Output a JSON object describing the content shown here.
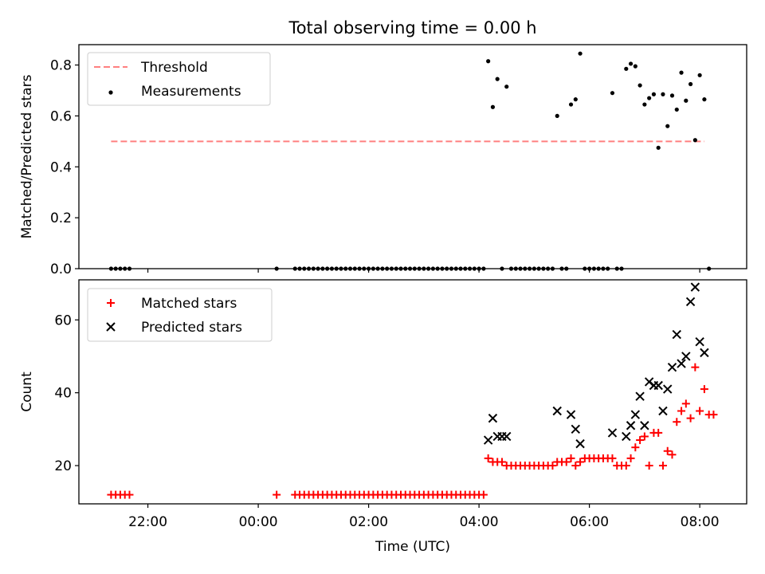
{
  "figure": {
    "title": "Total observing time = 0.00 h",
    "xlabel": "Time (UTC)",
    "x_tick_labels": [
      "22:00",
      "00:00",
      "02:00",
      "04:00",
      "06:00",
      "08:00"
    ]
  },
  "chart_data": [
    {
      "type": "scatter",
      "xlabel": "",
      "ylabel": "Matched/Predicted stars",
      "ylim": [
        0,
        0.88
      ],
      "yticks": [
        0.0,
        0.2,
        0.4,
        0.6,
        0.8
      ],
      "ytick_labels": [
        "0.0",
        "0.2",
        "0.4",
        "0.6",
        "0.8"
      ],
      "legend": {
        "placement": "top-left",
        "entries": [
          "Threshold",
          "Measurements"
        ]
      },
      "threshold": {
        "name": "Threshold",
        "y": 0.5,
        "x_range": [
          "21:20",
          "08:05"
        ],
        "color": "#ff8080",
        "style": "dashed"
      },
      "series": [
        {
          "name": "Measurements",
          "marker": "dot",
          "color": "#000000",
          "points": [
            [
              "21:20",
              0
            ],
            [
              "21:25",
              0
            ],
            [
              "21:30",
              0
            ],
            [
              "21:35",
              0
            ],
            [
              "21:40",
              0
            ],
            [
              "00:20",
              0
            ],
            [
              "00:40",
              0
            ],
            [
              "00:45",
              0
            ],
            [
              "00:50",
              0
            ],
            [
              "00:55",
              0
            ],
            [
              "01:00",
              0
            ],
            [
              "01:05",
              0
            ],
            [
              "01:10",
              0
            ],
            [
              "01:15",
              0
            ],
            [
              "01:20",
              0
            ],
            [
              "01:25",
              0
            ],
            [
              "01:30",
              0
            ],
            [
              "01:35",
              0
            ],
            [
              "01:40",
              0
            ],
            [
              "01:45",
              0
            ],
            [
              "01:50",
              0
            ],
            [
              "01:55",
              0
            ],
            [
              "02:00",
              0
            ],
            [
              "02:05",
              0
            ],
            [
              "02:10",
              0
            ],
            [
              "02:15",
              0
            ],
            [
              "02:20",
              0
            ],
            [
              "02:25",
              0
            ],
            [
              "02:30",
              0
            ],
            [
              "02:35",
              0
            ],
            [
              "02:40",
              0
            ],
            [
              "02:45",
              0
            ],
            [
              "02:50",
              0
            ],
            [
              "02:55",
              0
            ],
            [
              "03:00",
              0
            ],
            [
              "03:05",
              0
            ],
            [
              "03:10",
              0
            ],
            [
              "03:15",
              0
            ],
            [
              "03:20",
              0
            ],
            [
              "03:25",
              0
            ],
            [
              "03:30",
              0
            ],
            [
              "03:35",
              0
            ],
            [
              "03:40",
              0
            ],
            [
              "03:45",
              0
            ],
            [
              "03:50",
              0
            ],
            [
              "03:55",
              0
            ],
            [
              "04:00",
              0
            ],
            [
              "04:05",
              0
            ],
            [
              "04:10",
              0.815
            ],
            [
              "04:15",
              0.635
            ],
            [
              "04:20",
              0.745
            ],
            [
              "04:25",
              0
            ],
            [
              "04:30",
              0.715
            ],
            [
              "04:35",
              0
            ],
            [
              "04:40",
              0
            ],
            [
              "04:45",
              0
            ],
            [
              "04:50",
              0
            ],
            [
              "04:55",
              0
            ],
            [
              "05:00",
              0
            ],
            [
              "05:05",
              0
            ],
            [
              "05:10",
              0
            ],
            [
              "05:15",
              0
            ],
            [
              "05:20",
              0
            ],
            [
              "05:25",
              0.6
            ],
            [
              "05:30",
              0
            ],
            [
              "05:35",
              0
            ],
            [
              "05:40",
              0.645
            ],
            [
              "05:45",
              0.665
            ],
            [
              "05:50",
              0.845
            ],
            [
              "05:55",
              0
            ],
            [
              "06:00",
              0
            ],
            [
              "06:05",
              0
            ],
            [
              "06:10",
              0
            ],
            [
              "06:15",
              0
            ],
            [
              "06:20",
              0
            ],
            [
              "06:25",
              0.69
            ],
            [
              "06:30",
              0
            ],
            [
              "06:35",
              0
            ],
            [
              "06:40",
              0.785
            ],
            [
              "06:45",
              0.805
            ],
            [
              "06:50",
              0.795
            ],
            [
              "06:55",
              0.72
            ],
            [
              "07:00",
              0.645
            ],
            [
              "07:05",
              0.67
            ],
            [
              "07:10",
              0.685
            ],
            [
              "07:15",
              0.475
            ],
            [
              "07:20",
              0.685
            ],
            [
              "07:25",
              0.56
            ],
            [
              "07:30",
              0.68
            ],
            [
              "07:35",
              0.625
            ],
            [
              "07:40",
              0.77
            ],
            [
              "07:45",
              0.66
            ],
            [
              "07:50",
              0.725
            ],
            [
              "07:55",
              0.505
            ],
            [
              "08:00",
              0.76
            ],
            [
              "08:05",
              0.665
            ],
            [
              "08:10",
              0
            ]
          ]
        }
      ]
    },
    {
      "type": "scatter",
      "xlabel": "Time (UTC)",
      "ylabel": "Count",
      "ylim": [
        9.5,
        71
      ],
      "yticks": [
        20,
        40,
        60
      ],
      "ytick_labels": [
        "20",
        "40",
        "60"
      ],
      "legend": {
        "placement": "top-left",
        "entries": [
          "Matched stars",
          "Predicted stars"
        ]
      },
      "series": [
        {
          "name": "Matched stars",
          "marker": "plus",
          "color": "#ff0000",
          "points": [
            [
              "21:20",
              12
            ],
            [
              "21:25",
              12
            ],
            [
              "21:30",
              12
            ],
            [
              "21:35",
              12
            ],
            [
              "21:40",
              12
            ],
            [
              "00:20",
              12
            ],
            [
              "00:40",
              12
            ],
            [
              "00:45",
              12
            ],
            [
              "00:50",
              12
            ],
            [
              "00:55",
              12
            ],
            [
              "01:00",
              12
            ],
            [
              "01:05",
              12
            ],
            [
              "01:10",
              12
            ],
            [
              "01:15",
              12
            ],
            [
              "01:20",
              12
            ],
            [
              "01:25",
              12
            ],
            [
              "01:30",
              12
            ],
            [
              "01:35",
              12
            ],
            [
              "01:40",
              12
            ],
            [
              "01:45",
              12
            ],
            [
              "01:50",
              12
            ],
            [
              "01:55",
              12
            ],
            [
              "02:00",
              12
            ],
            [
              "02:05",
              12
            ],
            [
              "02:10",
              12
            ],
            [
              "02:15",
              12
            ],
            [
              "02:20",
              12
            ],
            [
              "02:25",
              12
            ],
            [
              "02:30",
              12
            ],
            [
              "02:35",
              12
            ],
            [
              "02:40",
              12
            ],
            [
              "02:45",
              12
            ],
            [
              "02:50",
              12
            ],
            [
              "02:55",
              12
            ],
            [
              "03:00",
              12
            ],
            [
              "03:05",
              12
            ],
            [
              "03:10",
              12
            ],
            [
              "03:15",
              12
            ],
            [
              "03:20",
              12
            ],
            [
              "03:25",
              12
            ],
            [
              "03:30",
              12
            ],
            [
              "03:35",
              12
            ],
            [
              "03:40",
              12
            ],
            [
              "03:45",
              12
            ],
            [
              "03:50",
              12
            ],
            [
              "03:55",
              12
            ],
            [
              "04:00",
              12
            ],
            [
              "04:05",
              12
            ],
            [
              "04:10",
              22
            ],
            [
              "04:15",
              21
            ],
            [
              "04:20",
              21
            ],
            [
              "04:25",
              21
            ],
            [
              "04:30",
              20
            ],
            [
              "04:35",
              20
            ],
            [
              "04:40",
              20
            ],
            [
              "04:45",
              20
            ],
            [
              "04:50",
              20
            ],
            [
              "04:55",
              20
            ],
            [
              "05:00",
              20
            ],
            [
              "05:05",
              20
            ],
            [
              "05:10",
              20
            ],
            [
              "05:15",
              20
            ],
            [
              "05:20",
              20
            ],
            [
              "05:25",
              21
            ],
            [
              "05:30",
              21
            ],
            [
              "05:35",
              21
            ],
            [
              "05:40",
              22
            ],
            [
              "05:45",
              20
            ],
            [
              "05:50",
              21
            ],
            [
              "05:55",
              22
            ],
            [
              "06:00",
              22
            ],
            [
              "06:05",
              22
            ],
            [
              "06:10",
              22
            ],
            [
              "06:15",
              22
            ],
            [
              "06:20",
              22
            ],
            [
              "06:25",
              22
            ],
            [
              "06:30",
              20
            ],
            [
              "06:35",
              20
            ],
            [
              "06:40",
              20
            ],
            [
              "06:45",
              22
            ],
            [
              "06:50",
              25
            ],
            [
              "06:55",
              27
            ],
            [
              "07:00",
              28
            ],
            [
              "07:05",
              20
            ],
            [
              "07:10",
              29
            ],
            [
              "07:15",
              29
            ],
            [
              "07:20",
              20
            ],
            [
              "07:25",
              24
            ],
            [
              "07:30",
              23
            ],
            [
              "07:35",
              32
            ],
            [
              "07:40",
              35
            ],
            [
              "07:45",
              37
            ],
            [
              "07:50",
              33
            ],
            [
              "07:55",
              47
            ],
            [
              "08:00",
              35
            ],
            [
              "08:05",
              41
            ],
            [
              "08:10",
              34
            ],
            [
              "08:15",
              34
            ]
          ]
        },
        {
          "name": "Predicted stars",
          "marker": "x",
          "color": "#000000",
          "points": [
            [
              "04:10",
              27
            ],
            [
              "04:15",
              33
            ],
            [
              "04:20",
              28
            ],
            [
              "04:25",
              28
            ],
            [
              "04:30",
              28
            ],
            [
              "05:25",
              35
            ],
            [
              "05:40",
              34
            ],
            [
              "05:45",
              30
            ],
            [
              "05:50",
              26
            ],
            [
              "06:25",
              29
            ],
            [
              "06:40",
              28
            ],
            [
              "06:45",
              31
            ],
            [
              "06:50",
              34
            ],
            [
              "06:55",
              39
            ],
            [
              "07:00",
              31
            ],
            [
              "07:05",
              43
            ],
            [
              "07:10",
              42
            ],
            [
              "07:15",
              42
            ],
            [
              "07:20",
              35
            ],
            [
              "07:25",
              41
            ],
            [
              "07:30",
              47
            ],
            [
              "07:35",
              56
            ],
            [
              "07:40",
              48
            ],
            [
              "07:45",
              50
            ],
            [
              "07:50",
              65
            ],
            [
              "07:55",
              69
            ],
            [
              "08:00",
              54
            ],
            [
              "08:05",
              51
            ]
          ]
        }
      ]
    }
  ]
}
